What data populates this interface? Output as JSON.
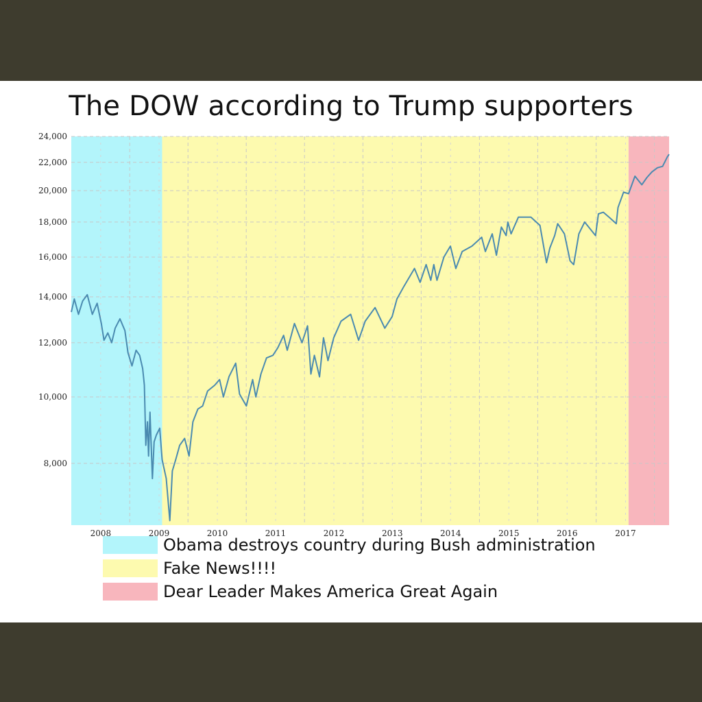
{
  "chart_data": {
    "type": "line",
    "title": "The DOW according to Trump supporters",
    "xlabel": "",
    "ylabel": "",
    "y_scale": "log",
    "ylim": [
      6500,
      24000
    ],
    "xlim": [
      "2007-07-01",
      "2017-10-01"
    ],
    "y_ticks": [
      24000,
      22000,
      20000,
      18000,
      16000,
      14000,
      12000,
      10000,
      8000
    ],
    "y_tick_labels": [
      "24,000",
      "22,000",
      "20,000",
      "18,000",
      "16,000",
      "14,000",
      "12,000",
      "10,000",
      "8,000"
    ],
    "x_ticks": [
      "2008",
      "2009",
      "2010",
      "2011",
      "2012",
      "2013",
      "2014",
      "2015",
      "2016",
      "2017"
    ],
    "grid": true,
    "line_color": "#4a8ab0",
    "regions": [
      {
        "label": "Obama destroys country during Bush administration",
        "start": "2007-07-01",
        "end": "2009-01-20",
        "color": "#b3f5fb"
      },
      {
        "label": "Fake News!!!!",
        "start": "2009-01-20",
        "end": "2017-01-20",
        "color": "#fdfaaf"
      },
      {
        "label": "Dear Leader Makes America Great Again",
        "start": "2017-01-20",
        "end": "2017-10-01",
        "color": "#f8b6bd"
      }
    ],
    "series": [
      {
        "points": [
          [
            "2007-07-01",
            13300
          ],
          [
            "2007-07-20",
            13900
          ],
          [
            "2007-08-15",
            13200
          ],
          [
            "2007-09-10",
            13800
          ],
          [
            "2007-10-09",
            14100
          ],
          [
            "2007-11-10",
            13200
          ],
          [
            "2007-12-10",
            13700
          ],
          [
            "2008-01-05",
            12800
          ],
          [
            "2008-01-22",
            12100
          ],
          [
            "2008-02-15",
            12400
          ],
          [
            "2008-03-10",
            12000
          ],
          [
            "2008-04-01",
            12600
          ],
          [
            "2008-05-01",
            13000
          ],
          [
            "2008-06-01",
            12500
          ],
          [
            "2008-06-20",
            11600
          ],
          [
            "2008-07-15",
            11100
          ],
          [
            "2008-08-10",
            11700
          ],
          [
            "2008-09-01",
            11500
          ],
          [
            "2008-09-20",
            11000
          ],
          [
            "2008-10-01",
            10400
          ],
          [
            "2008-10-10",
            8500
          ],
          [
            "2008-10-20",
            9200
          ],
          [
            "2008-10-27",
            8200
          ],
          [
            "2008-11-05",
            9500
          ],
          [
            "2008-11-20",
            7600
          ],
          [
            "2008-12-01",
            8600
          ],
          [
            "2008-12-15",
            8800
          ],
          [
            "2009-01-05",
            9000
          ],
          [
            "2009-01-20",
            8100
          ],
          [
            "2009-02-15",
            7600
          ],
          [
            "2009-03-09",
            6600
          ],
          [
            "2009-03-25",
            7800
          ],
          [
            "2009-04-15",
            8100
          ],
          [
            "2009-05-10",
            8500
          ],
          [
            "2009-06-10",
            8700
          ],
          [
            "2009-07-08",
            8200
          ],
          [
            "2009-08-01",
            9200
          ],
          [
            "2009-09-01",
            9600
          ],
          [
            "2009-10-01",
            9700
          ],
          [
            "2009-11-01",
            10200
          ],
          [
            "2009-12-15",
            10400
          ],
          [
            "2010-01-15",
            10600
          ],
          [
            "2010-02-08",
            10000
          ],
          [
            "2010-03-15",
            10700
          ],
          [
            "2010-04-26",
            11200
          ],
          [
            "2010-05-20",
            10100
          ],
          [
            "2010-07-02",
            9700
          ],
          [
            "2010-08-10",
            10600
          ],
          [
            "2010-08-30",
            10000
          ],
          [
            "2010-10-01",
            10800
          ],
          [
            "2010-11-05",
            11400
          ],
          [
            "2010-12-15",
            11500
          ],
          [
            "2011-01-15",
            11800
          ],
          [
            "2011-02-20",
            12300
          ],
          [
            "2011-03-15",
            11700
          ],
          [
            "2011-04-29",
            12800
          ],
          [
            "2011-06-15",
            12000
          ],
          [
            "2011-07-20",
            12700
          ],
          [
            "2011-08-10",
            10800
          ],
          [
            "2011-09-01",
            11500
          ],
          [
            "2011-10-03",
            10700
          ],
          [
            "2011-10-28",
            12200
          ],
          [
            "2011-11-25",
            11300
          ],
          [
            "2011-12-31",
            12200
          ],
          [
            "2012-02-15",
            12900
          ],
          [
            "2012-04-15",
            13200
          ],
          [
            "2012-06-04",
            12100
          ],
          [
            "2012-07-15",
            12900
          ],
          [
            "2012-09-15",
            13500
          ],
          [
            "2012-11-15",
            12600
          ],
          [
            "2012-12-31",
            13100
          ],
          [
            "2013-01-30",
            13900
          ],
          [
            "2013-03-15",
            14500
          ],
          [
            "2013-05-20",
            15400
          ],
          [
            "2013-06-24",
            14700
          ],
          [
            "2013-08-01",
            15600
          ],
          [
            "2013-08-30",
            14800
          ],
          [
            "2013-09-18",
            15600
          ],
          [
            "2013-10-08",
            14800
          ],
          [
            "2013-11-20",
            16000
          ],
          [
            "2013-12-31",
            16600
          ],
          [
            "2014-02-03",
            15400
          ],
          [
            "2014-03-15",
            16300
          ],
          [
            "2014-05-15",
            16600
          ],
          [
            "2014-07-15",
            17100
          ],
          [
            "2014-08-07",
            16300
          ],
          [
            "2014-09-19",
            17300
          ],
          [
            "2014-10-15",
            16100
          ],
          [
            "2014-11-15",
            17700
          ],
          [
            "2014-12-15",
            17200
          ],
          [
            "2014-12-26",
            18000
          ],
          [
            "2015-01-15",
            17300
          ],
          [
            "2015-03-02",
            18300
          ],
          [
            "2015-05-19",
            18300
          ],
          [
            "2015-07-15",
            17800
          ],
          [
            "2015-08-25",
            15700
          ],
          [
            "2015-09-15",
            16500
          ],
          [
            "2015-10-15",
            17200
          ],
          [
            "2015-11-03",
            17900
          ],
          [
            "2015-12-15",
            17300
          ],
          [
            "2016-01-20",
            15800
          ],
          [
            "2016-02-11",
            15600
          ],
          [
            "2016-03-15",
            17300
          ],
          [
            "2016-04-20",
            18000
          ],
          [
            "2016-06-27",
            17200
          ],
          [
            "2016-07-15",
            18500
          ],
          [
            "2016-08-15",
            18600
          ],
          [
            "2016-10-01",
            18200
          ],
          [
            "2016-11-04",
            17900
          ],
          [
            "2016-11-15",
            18900
          ],
          [
            "2016-12-20",
            19900
          ],
          [
            "2017-01-20",
            19800
          ],
          [
            "2017-03-01",
            21000
          ],
          [
            "2017-04-13",
            20400
          ],
          [
            "2017-05-15",
            20900
          ],
          [
            "2017-06-15",
            21300
          ],
          [
            "2017-07-20",
            21600
          ],
          [
            "2017-08-21",
            21700
          ],
          [
            "2017-09-20",
            22400
          ],
          [
            "2017-10-01",
            22600
          ]
        ]
      }
    ]
  }
}
